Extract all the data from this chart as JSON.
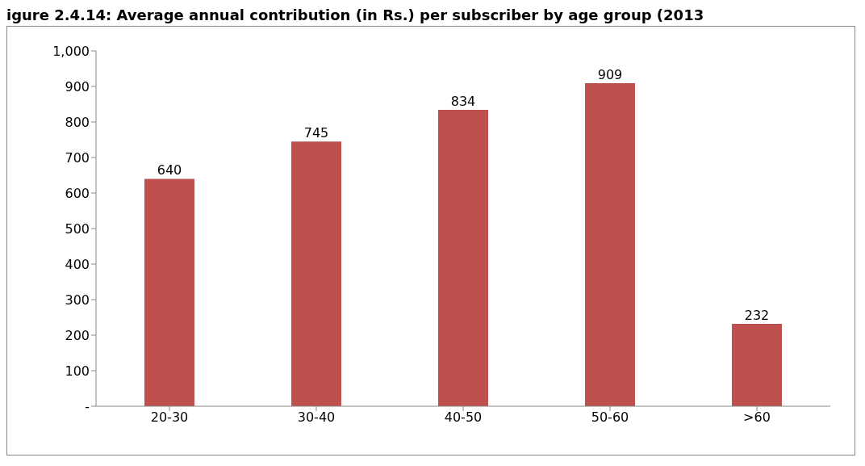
{
  "chart_data": {
    "type": "bar",
    "title": "igure 2.4.14: Average annual contribution (in Rs.) per subscriber by age group (2013",
    "categories": [
      "20-30",
      "30-40",
      "40-50",
      "50-60",
      ">60"
    ],
    "values": [
      640,
      745,
      834,
      909,
      232
    ],
    "color": "#c0504d",
    "ylim": [
      0,
      1000
    ],
    "yticks": [
      {
        "value": 0,
        "label": "-"
      },
      100,
      200,
      300,
      400,
      500,
      600,
      700,
      800,
      900,
      {
        "value": 1000,
        "label": "1,000"
      }
    ],
    "data_labels": true,
    "grid": false,
    "legend": false
  }
}
